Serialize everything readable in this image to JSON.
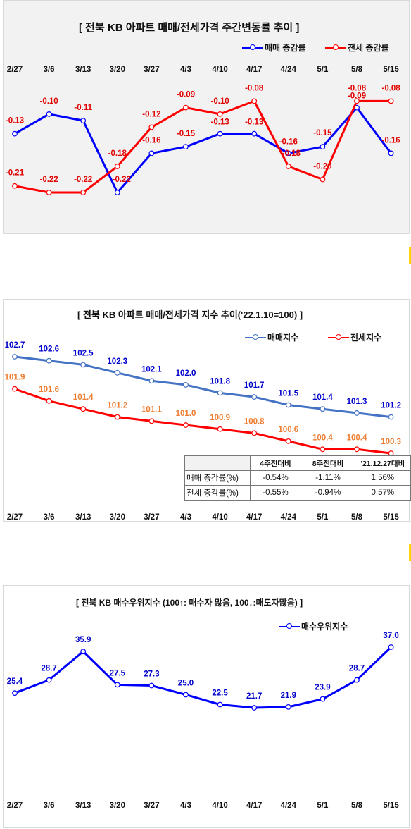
{
  "charts": [
    {
      "title": "[ 전북  KB 아파트 매매/전세가격 주간변동률 추이 ]",
      "type": "line",
      "categories": [
        "2/27",
        "3/6",
        "3/13",
        "3/20",
        "3/27",
        "4/3",
        "4/10",
        "4/17",
        "4/24",
        "5/1",
        "5/8",
        "5/15"
      ],
      "series": [
        {
          "name": "매매 증감률",
          "color": "#0000ff",
          "label_color": "#e00000",
          "values": [
            -0.13,
            -0.1,
            -0.11,
            -0.22,
            -0.16,
            -0.15,
            -0.13,
            -0.13,
            -0.16,
            -0.15,
            -0.09,
            -0.16
          ]
        },
        {
          "name": "전세 증감률",
          "color": "#ff0000",
          "label_color": "#e00000",
          "values": [
            -0.21,
            -0.22,
            -0.22,
            -0.18,
            -0.12,
            -0.09,
            -0.1,
            -0.08,
            -0.18,
            -0.2,
            -0.08,
            -0.08
          ]
        }
      ]
    },
    {
      "title": "[  전북  KB 아파트 매매/전세가격 지수 추이('22.1.10=100)  ]",
      "type": "line",
      "categories": [
        "2/27",
        "3/6",
        "3/13",
        "3/20",
        "3/27",
        "4/3",
        "4/10",
        "4/17",
        "4/24",
        "5/1",
        "5/8",
        "5/15"
      ],
      "series": [
        {
          "name": "매매지수",
          "color": "#4472c4",
          "label_color": "#0000cc",
          "values": [
            102.7,
            102.6,
            102.5,
            102.3,
            102.1,
            102.0,
            101.8,
            101.7,
            101.5,
            101.4,
            101.3,
            101.2
          ]
        },
        {
          "name": "전세지수",
          "color": "#ff0000",
          "label_color": "#ed7d31",
          "values": [
            101.9,
            101.6,
            101.4,
            101.2,
            101.1,
            101.0,
            100.9,
            100.8,
            100.6,
            100.4,
            100.4,
            100.3
          ]
        }
      ]
    },
    {
      "title": "[  전북  KB 매수우위지수 (100↑: 매수자 많음, 100↓:매도자많음)  ]",
      "type": "line",
      "categories": [
        "2/27",
        "3/6",
        "3/13",
        "3/20",
        "3/27",
        "4/3",
        "4/10",
        "4/17",
        "4/24",
        "5/1",
        "5/8",
        "5/15"
      ],
      "series": [
        {
          "name": "매수우위지수",
          "color": "#0000ff",
          "label_color": "#0000cc",
          "values": [
            25.4,
            28.7,
            35.9,
            27.5,
            27.3,
            25.0,
            22.5,
            21.7,
            21.9,
            23.9,
            28.7,
            37.0
          ]
        }
      ]
    }
  ],
  "stats_table": {
    "headers": [
      "4주전대비",
      "8주전대비",
      "'21.12.27대비"
    ],
    "rows": [
      {
        "label": "매매 증감률(%)",
        "values": [
          "-0.54%",
          "-1.11%",
          "1.56%"
        ]
      },
      {
        "label": "전세 증감률(%)",
        "values": [
          "-0.55%",
          "-0.94%",
          "0.57%"
        ]
      }
    ]
  }
}
